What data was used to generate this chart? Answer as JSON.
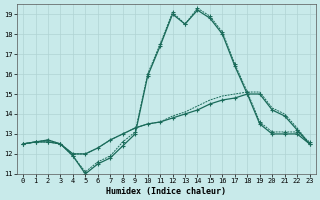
{
  "xlabel": "Humidex (Indice chaleur)",
  "xlim": [
    -0.5,
    23.5
  ],
  "ylim": [
    11,
    19.5
  ],
  "yticks": [
    11,
    12,
    13,
    14,
    15,
    16,
    17,
    18,
    19
  ],
  "xticks": [
    0,
    1,
    2,
    3,
    4,
    5,
    6,
    7,
    8,
    9,
    10,
    11,
    12,
    13,
    14,
    15,
    16,
    17,
    18,
    19,
    20,
    21,
    22,
    23
  ],
  "bg_color": "#c8eaea",
  "grid_color": "#b0d4d4",
  "line_color": "#1a6b5a",
  "line1_y": [
    12.5,
    12.6,
    12.6,
    12.5,
    11.9,
    11.0,
    11.5,
    11.8,
    12.4,
    13.0,
    15.9,
    17.4,
    19.0,
    18.5,
    19.2,
    18.8,
    18.0,
    16.4,
    15.0,
    13.5,
    13.0,
    13.0,
    13.0,
    12.5
  ],
  "line2_y": [
    12.5,
    12.6,
    12.6,
    12.5,
    11.9,
    11.1,
    11.6,
    11.9,
    12.6,
    13.1,
    16.0,
    17.5,
    19.1,
    18.5,
    19.3,
    18.9,
    18.1,
    16.5,
    15.1,
    13.6,
    13.1,
    13.1,
    13.1,
    12.6
  ],
  "line3_y": [
    12.5,
    12.6,
    12.7,
    12.5,
    12.0,
    12.0,
    12.3,
    12.7,
    13.0,
    13.3,
    13.5,
    13.6,
    13.8,
    14.0,
    14.2,
    14.5,
    14.7,
    14.8,
    15.0,
    15.0,
    14.2,
    13.9,
    13.2,
    12.5
  ],
  "line4_y": [
    12.5,
    12.6,
    12.7,
    12.5,
    12.0,
    12.0,
    12.3,
    12.7,
    13.0,
    13.3,
    13.5,
    13.6,
    13.9,
    14.1,
    14.4,
    14.7,
    14.9,
    15.0,
    15.1,
    15.1,
    14.3,
    14.0,
    13.3,
    12.5
  ]
}
